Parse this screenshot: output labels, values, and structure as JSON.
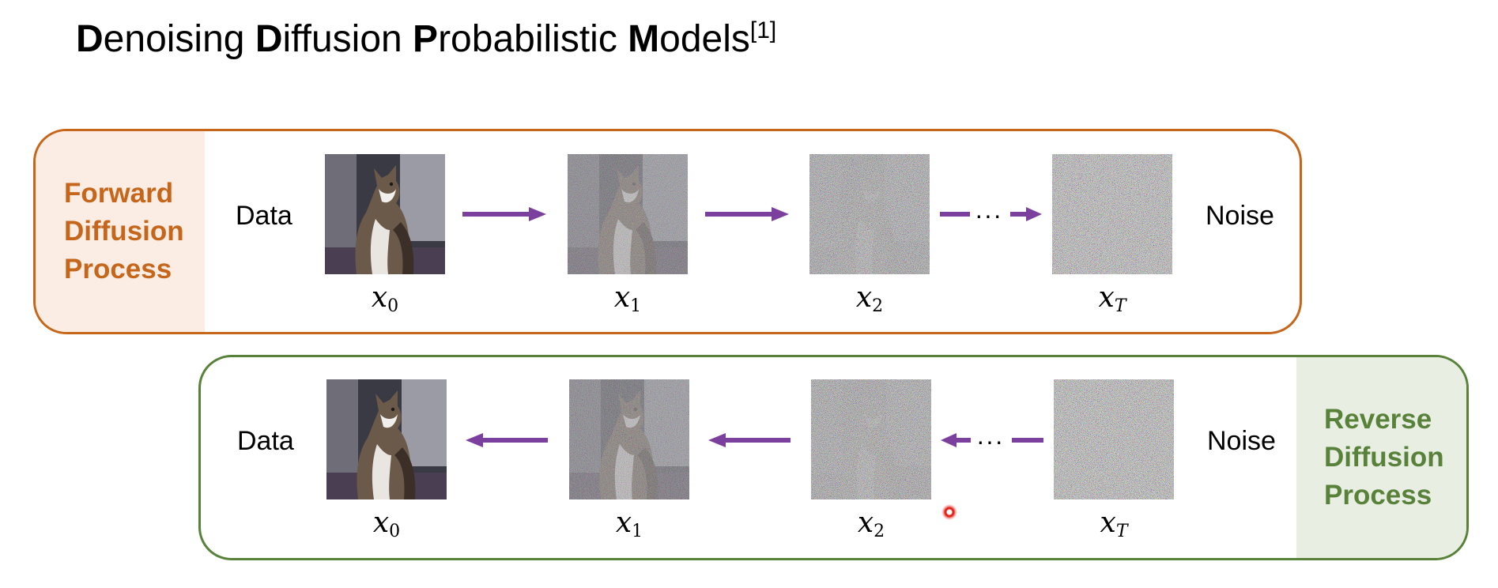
{
  "title": {
    "parts": [
      {
        "bold": "D",
        "rest": "enoising "
      },
      {
        "bold": "D",
        "rest": "iffusion "
      },
      {
        "bold": "P",
        "rest": "robabilistic "
      },
      {
        "bold": "M",
        "rest": "odels"
      }
    ],
    "citation": "[1]"
  },
  "forward": {
    "side_lines": [
      "Forward",
      "Diffusion",
      "Process"
    ],
    "start_label": "Data",
    "end_label": "Noise",
    "dots": "···",
    "steps": [
      {
        "var": "x",
        "sub": "0",
        "noise": 0.0
      },
      {
        "var": "x",
        "sub": "1",
        "noise": 0.45
      },
      {
        "var": "x",
        "sub": "2",
        "noise": 0.8
      },
      {
        "var": "x",
        "sub": "T",
        "noise": 1.0
      }
    ]
  },
  "reverse": {
    "side_lines": [
      "Reverse",
      "Diffusion",
      "Process"
    ],
    "start_label": "Data",
    "end_label": "Noise",
    "dots": "···",
    "steps": [
      {
        "var": "x",
        "sub": "0",
        "noise": 0.0
      },
      {
        "var": "x",
        "sub": "1",
        "noise": 0.45
      },
      {
        "var": "x",
        "sub": "2",
        "noise": 0.8
      },
      {
        "var": "x",
        "sub": "T",
        "noise": 1.0
      }
    ]
  },
  "colors": {
    "forward_accent": "#c5661b",
    "reverse_accent": "#58813a",
    "arrow": "#7b3f9e"
  }
}
